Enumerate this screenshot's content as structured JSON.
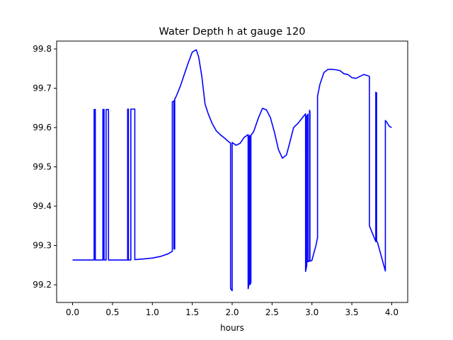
{
  "chart_data": {
    "type": "line",
    "title": "Water Depth h at gauge 120",
    "xlabel": "hours",
    "ylabel": "",
    "xlim": [
      -0.2,
      4.2
    ],
    "ylim": [
      99.155,
      99.82
    ],
    "grid": false,
    "xticks": [
      0.0,
      0.5,
      1.0,
      1.5,
      2.0,
      2.5,
      3.0,
      3.5,
      4.0
    ],
    "xtick_labels": [
      "0.0",
      "0.5",
      "1.0",
      "1.5",
      "2.0",
      "2.5",
      "3.0",
      "3.5",
      "4.0"
    ],
    "yticks": [
      99.2,
      99.3,
      99.4,
      99.5,
      99.6,
      99.7,
      99.8
    ],
    "ytick_labels": [
      "99.2",
      "99.3",
      "99.4",
      "99.5",
      "99.6",
      "99.7",
      "99.8"
    ],
    "series": [
      {
        "color": "#0000ff",
        "x": [
          0.0,
          0.27,
          0.27,
          0.285,
          0.285,
          0.38,
          0.38,
          0.395,
          0.395,
          0.42,
          0.42,
          0.45,
          0.45,
          0.69,
          0.69,
          0.7,
          0.7,
          0.73,
          0.73,
          0.78,
          0.78,
          0.9,
          1.0,
          1.1,
          1.2,
          1.25,
          1.25,
          1.27,
          1.27,
          1.28,
          1.28,
          1.3,
          1.35,
          1.4,
          1.45,
          1.5,
          1.55,
          1.58,
          1.62,
          1.66,
          1.7,
          1.75,
          1.8,
          1.85,
          1.9,
          1.95,
          1.98,
          1.98,
          2.0,
          2.0,
          2.05,
          2.1,
          2.15,
          2.2,
          2.2,
          2.205,
          2.205,
          2.22,
          2.22,
          2.235,
          2.235,
          2.27,
          2.33,
          2.38,
          2.43,
          2.48,
          2.53,
          2.58,
          2.63,
          2.68,
          2.72,
          2.77,
          2.83,
          2.88,
          2.92,
          2.92,
          2.935,
          2.935,
          2.95,
          2.95,
          2.97,
          2.97,
          2.975,
          2.975,
          3.0,
          3.01,
          3.05,
          3.07,
          3.07,
          3.1,
          3.15,
          3.2,
          3.25,
          3.3,
          3.35,
          3.4,
          3.45,
          3.5,
          3.55,
          3.6,
          3.65,
          3.7,
          3.72,
          3.72,
          3.8,
          3.8,
          3.81,
          3.81,
          3.82,
          3.82,
          3.92,
          3.92,
          3.94,
          3.97,
          4.0
        ],
        "y": [
          99.263,
          99.263,
          99.646,
          99.646,
          99.263,
          99.263,
          99.646,
          99.646,
          99.263,
          99.263,
          99.646,
          99.646,
          99.263,
          99.263,
          99.647,
          99.647,
          99.263,
          99.263,
          99.647,
          99.647,
          99.264,
          99.266,
          99.268,
          99.272,
          99.279,
          99.285,
          99.665,
          99.668,
          99.291,
          99.291,
          99.672,
          99.68,
          99.705,
          99.735,
          99.765,
          99.792,
          99.798,
          99.78,
          99.73,
          99.66,
          99.635,
          99.61,
          99.592,
          99.582,
          99.574,
          99.565,
          99.56,
          99.19,
          99.185,
          99.562,
          99.555,
          99.56,
          99.575,
          99.582,
          99.19,
          99.195,
          99.575,
          99.58,
          99.2,
          99.205,
          99.58,
          99.59,
          99.625,
          99.649,
          99.645,
          99.625,
          99.588,
          99.544,
          99.522,
          99.53,
          99.56,
          99.6,
          99.612,
          99.625,
          99.635,
          99.234,
          99.249,
          99.629,
          99.634,
          99.258,
          99.262,
          99.644,
          99.641,
          99.26,
          99.262,
          99.27,
          99.3,
          99.32,
          99.68,
          99.71,
          99.74,
          99.748,
          99.748,
          99.747,
          99.745,
          99.737,
          99.735,
          99.727,
          99.725,
          99.73,
          99.735,
          99.732,
          99.73,
          99.35,
          99.31,
          99.69,
          99.688,
          99.31,
          99.309,
          99.309,
          99.235,
          99.618,
          99.613,
          99.603,
          99.6
        ]
      }
    ]
  }
}
